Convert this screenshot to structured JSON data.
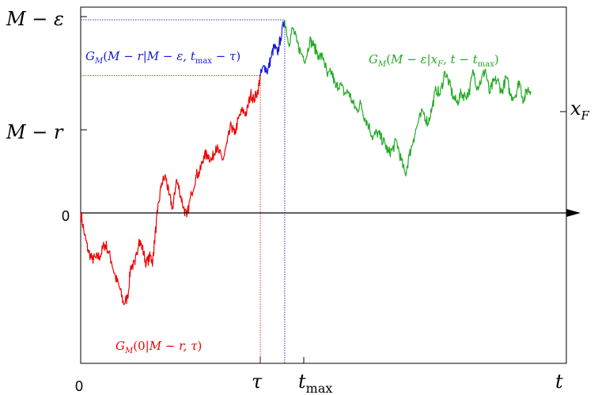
{
  "figure": {
    "y_labels": {
      "top": "M − ε",
      "mid": "M − r",
      "zero": "0",
      "xf": "x_F"
    },
    "x_labels": {
      "origin": "0",
      "tau": "τ",
      "tmax": "t_max",
      "t": "t"
    },
    "annotations": {
      "red": "G_M(0|M − r, τ)",
      "blue": "G_M(M − r|M − ε, t_max − τ)",
      "green": "G_M(M − ε|x_F, t − t_max)"
    },
    "colors": {
      "red": "#ee0000",
      "blue": "#1a1ad6",
      "green": "#22aa22",
      "axis": "#000000"
    }
  },
  "chart_data": {
    "type": "line",
    "series": [
      {
        "color": "red",
        "x": [
          0,
          0.05,
          0.09,
          0.14,
          0.19,
          0.24,
          0.29,
          0.32,
          0.38,
          0.43,
          0.48,
          0.53,
          0.58,
          0.62,
          0.67,
          0.72,
          0.76,
          0.81,
          0.86,
          0.89,
          0.91,
          0.95,
          1.0,
          1.05,
          1.09,
          1.14,
          1.18,
          1.22,
          1.27,
          1.31,
          1.37,
          1.43,
          1.47,
          1.52,
          1.57,
          1.62,
          1.67,
          1.71,
          1.76,
          1.81,
          1.86,
          1.9,
          1.95,
          2.0,
          2.05,
          2.1,
          2.14,
          2.19,
          2.22
        ],
        "y": [
          0,
          -1.08,
          -1.78,
          -2.23,
          -2.16,
          -2.07,
          -1.55,
          -1.58,
          -2.32,
          -3.1,
          -3.58,
          -4.36,
          -4.06,
          -2.53,
          -2.49,
          -1.27,
          -1.67,
          -2.43,
          -2.08,
          -2.35,
          -1.44,
          0.05,
          1.44,
          1.75,
          0.87,
          0.21,
          1.58,
          1.11,
          0.27,
          -0.19,
          0.96,
          1.84,
          1.91,
          2.74,
          2.8,
          2.52,
          3.21,
          2.87,
          2.55,
          3.36,
          4.22,
          3.76,
          4.52,
          4.92,
          4.78,
          5.73,
          5.44,
          5.87,
          6.59
        ]
      },
      {
        "color": "blue",
        "x": [
          2.22,
          2.27,
          2.31,
          2.35,
          2.39,
          2.43,
          2.47,
          2.52
        ],
        "y": [
          6.59,
          7.07,
          6.78,
          7.45,
          7.98,
          7.66,
          8.39,
          9.27
        ]
      },
      {
        "color": "green",
        "x": [
          2.52,
          2.57,
          2.62,
          2.67,
          2.72,
          2.78,
          2.83,
          2.88,
          2.94,
          3.0,
          3.05,
          3.1,
          3.15,
          3.2,
          3.26,
          3.31,
          3.36,
          3.41,
          3.46,
          3.51,
          3.56,
          3.61,
          3.66,
          3.71,
          3.76,
          3.8,
          3.85,
          3.9,
          3.96,
          4.01,
          4.06,
          4.11,
          4.17,
          4.23,
          4.29,
          4.34,
          4.39,
          4.44,
          4.5,
          4.55,
          4.6,
          4.65,
          4.7,
          4.75,
          4.8,
          4.85,
          4.9,
          4.95,
          5.0,
          5.05,
          5.1,
          5.15,
          5.2,
          5.26,
          5.31,
          5.37,
          5.42,
          5.47,
          5.52,
          5.56
        ],
        "y": [
          9.27,
          8.12,
          8.88,
          8.21,
          7.68,
          7.37,
          8.3,
          8.01,
          7.56,
          7.44,
          6.54,
          6.78,
          6.02,
          6.21,
          5.74,
          5.82,
          5.28,
          4.92,
          5.25,
          4.55,
          4.19,
          3.6,
          3.88,
          3.61,
          3.31,
          2.89,
          3.02,
          3.48,
          2.53,
          1.83,
          2.77,
          3.54,
          4.37,
          4.87,
          4.3,
          5.03,
          5.95,
          5.66,
          6.79,
          6.25,
          5.59,
          5.27,
          5.74,
          5.6,
          5.8,
          6.81,
          6.03,
          6.39,
          6.9,
          5.73,
          6.3,
          6.38,
          5.78,
          6.53,
          5.61,
          5.64,
          6.33,
          5.39,
          5.94,
          5.84
        ]
      }
    ],
    "reference_levels": {
      "M_minus_epsilon": 9.27,
      "M_minus_r": 6.59,
      "tau": 2.22,
      "t_max": 2.52,
      "t": 6.0
    },
    "xlim": [
      0,
      6.0
    ],
    "ylim": [
      -5.6,
      10.0
    ]
  }
}
